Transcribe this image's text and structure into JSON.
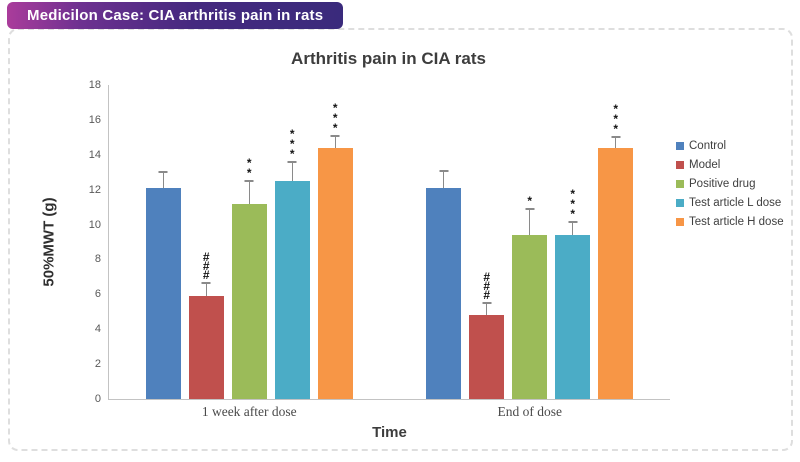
{
  "badge": {
    "label": "Medicilon Case: CIA arthritis pain in rats"
  },
  "chart_data": {
    "type": "bar",
    "title": "Arthritis pain in CIA rats",
    "xlabel": "Time",
    "ylabel": "50%MWT (g)",
    "ylim": [
      0,
      18
    ],
    "ytick_step": 2,
    "grid": false,
    "legend_position": "right",
    "categories": [
      "1 week after dose",
      "End of dose"
    ],
    "series": [
      {
        "name": "Control",
        "color": "#4F81BD",
        "values": [
          12.1,
          12.1
        ],
        "errors": [
          0.9,
          1.0
        ],
        "markers": [
          "",
          ""
        ]
      },
      {
        "name": "Model",
        "color": "#C0504D",
        "values": [
          5.9,
          4.8
        ],
        "errors": [
          0.75,
          0.7
        ],
        "markers": [
          "###",
          "###"
        ]
      },
      {
        "name": "Positive drug",
        "color": "#9BBB59",
        "values": [
          11.2,
          9.4
        ],
        "errors": [
          1.3,
          1.5
        ],
        "markers": [
          "**",
          "*"
        ]
      },
      {
        "name": "Test article L dose",
        "color": "#4BACC6",
        "values": [
          12.5,
          9.4
        ],
        "errors": [
          1.1,
          0.75
        ],
        "markers": [
          "***",
          "***"
        ]
      },
      {
        "name": "Test article H dose",
        "color": "#F79646",
        "values": [
          14.4,
          14.4
        ],
        "errors": [
          0.7,
          0.65
        ],
        "markers": [
          "***",
          "***"
        ]
      }
    ]
  }
}
